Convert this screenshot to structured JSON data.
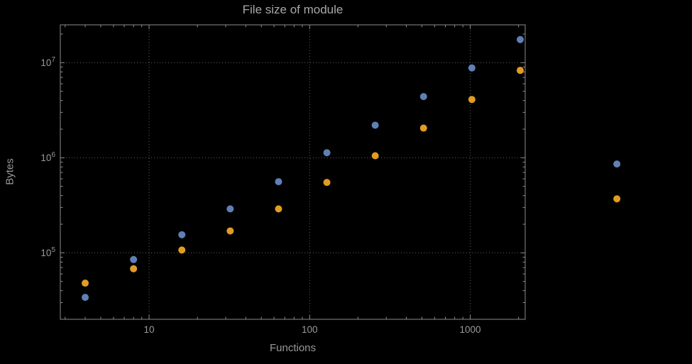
{
  "figure": {
    "title": "File size of module",
    "xlabel": "Functions",
    "ylabel": "Bytes"
  },
  "chart_data": {
    "type": "scatter",
    "title": "File size of module",
    "xlabel": "Functions",
    "ylabel": "Bytes",
    "x_scale": "log",
    "y_scale": "log",
    "xlim": [
      2.8,
      2200
    ],
    "ylim": [
      20000,
      25000000
    ],
    "grid": "dotted",
    "legend": "none",
    "x_ticks": [
      10,
      100,
      1000
    ],
    "x_tick_labels": [
      "10",
      "100",
      "1000"
    ],
    "y_ticks": [
      100000,
      1000000,
      10000000
    ],
    "y_tick_labels": [
      "10^5",
      "10^6",
      "10^7"
    ],
    "y_tick_exponents": [
      "5",
      "6",
      "7"
    ],
    "x": [
      4,
      8,
      16,
      32,
      64,
      128,
      256,
      512,
      1024,
      2048,
      8192
    ],
    "series": [
      {
        "name": "series-1-blue",
        "color": "#5e81b5",
        "values": [
          34000,
          85000,
          155000,
          290000,
          560000,
          1130000,
          2200000,
          4400000,
          8800000,
          17500000,
          860000
        ]
      },
      {
        "name": "series-2-orange",
        "color": "#e19c24",
        "values": [
          48000,
          68000,
          107000,
          170000,
          290000,
          550000,
          1050000,
          2050000,
          4100000,
          8300000,
          370000
        ]
      }
    ],
    "colors": {
      "background": "#000000",
      "frame": "#8c8c8c",
      "grid": "#5f5f5f",
      "text": "#9a9a9a"
    }
  }
}
